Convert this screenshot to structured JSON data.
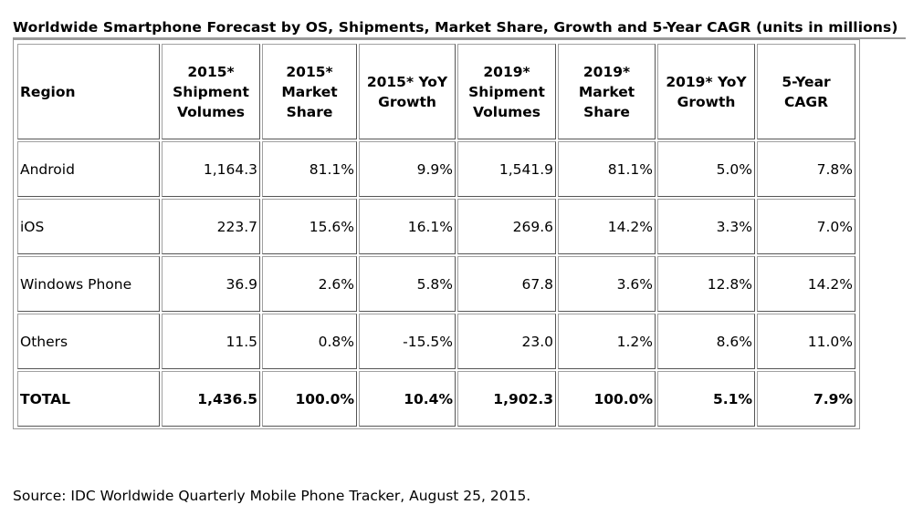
{
  "title": "Worldwide Smartphone Forecast by OS, Shipments, Market Share, Growth and 5-Year CAGR (units in millions)",
  "columns": [
    "Region",
    "2015* Shipment Volumes",
    "2015* Market Share",
    "2015* YoY Growth",
    "2019* Shipment Volumes",
    "2019* Market Share",
    "2019* YoY Growth",
    "5-Year CAGR"
  ],
  "rows": [
    [
      "Android",
      "1,164.3",
      "81.1%",
      "9.9%",
      "1,541.9",
      "81.1%",
      "5.0%",
      "7.8%"
    ],
    [
      "iOS",
      "223.7",
      "15.6%",
      "16.1%",
      "269.6",
      "14.2%",
      "3.3%",
      "7.0%"
    ],
    [
      "Windows Phone",
      "36.9",
      "2.6%",
      "5.8%",
      "67.8",
      "3.6%",
      "12.8%",
      "14.2%"
    ],
    [
      "Others",
      "11.5",
      "0.8%",
      "-15.5%",
      "23.0",
      "1.2%",
      "8.6%",
      "11.0%"
    ],
    [
      "TOTAL",
      "1,436.5",
      "100.0%",
      "10.4%",
      "1,902.3",
      "100.0%",
      "5.1%",
      "7.9%"
    ]
  ],
  "source": "Source: IDC Worldwide Quarterly Mobile Phone Tracker, August 25, 2015."
}
